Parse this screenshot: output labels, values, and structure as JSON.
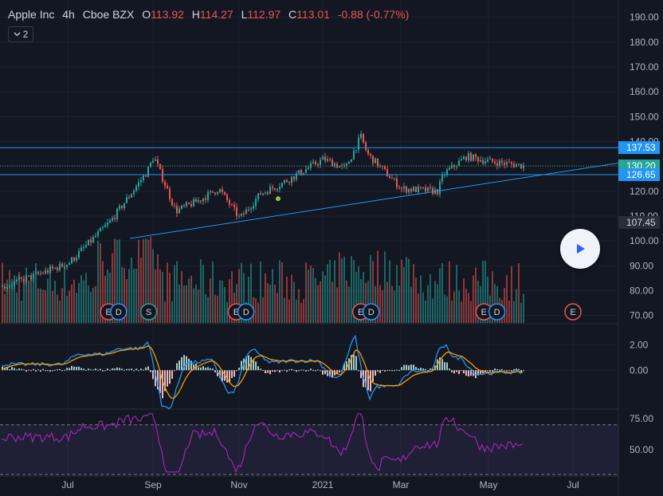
{
  "header": {
    "symbol": "Apple Inc",
    "interval": "4h",
    "exchange": "Cboe BZX",
    "open_label": "O",
    "open": "113.92",
    "high_label": "H",
    "high": "114.27",
    "low_label": "L",
    "low": "112.97",
    "close_label": "C",
    "close": "113.01",
    "change": "-0.88 (-0.77%)"
  },
  "indicators_toggle": {
    "icon": "chevron-down-icon",
    "count": "2"
  },
  "play_button": {
    "icon": "play-icon"
  },
  "colors": {
    "background": "#131722",
    "up": "#26a69a",
    "down": "#ef5350",
    "line_blue": "#2196f3",
    "line_orange": "#ff9800",
    "rsi": "#9c27b0",
    "grid": "#1e222d",
    "current_price_tag": "#26a69a",
    "hline_tag": "#2196f3"
  },
  "chart_data": [
    {
      "type": "candlestick",
      "panel": "price",
      "y_axis_ticks": [
        70,
        80,
        90,
        100,
        110,
        120,
        130,
        140,
        150,
        160,
        170,
        180,
        190
      ],
      "ylim": [
        67,
        195
      ],
      "x_ticks": [
        "Jul",
        "Sep",
        "Nov",
        "2021",
        "Mar",
        "May",
        "Jul"
      ],
      "price_labels": [
        {
          "value": "137.53",
          "kind": "horizontal-line"
        },
        {
          "value": "130.20",
          "kind": "current"
        },
        {
          "value": "126.65",
          "kind": "horizontal-line"
        },
        {
          "value": "107.45",
          "kind": "marker"
        }
      ],
      "horizontal_lines": [
        137.53,
        126.65
      ],
      "trendline": {
        "from": {
          "x": "Aug 15",
          "y": 101
        },
        "to": {
          "x": "Jul 2021",
          "y": 128.5
        }
      },
      "series_close_approx": [
        {
          "x": "Jun",
          "y": 80
        },
        {
          "x": "Jul",
          "y": 91
        },
        {
          "x": "Aug",
          "y": 108
        },
        {
          "x": "Aug end",
          "y": 128
        },
        {
          "x": "Sep 1",
          "y": 134
        },
        {
          "x": "Sep mid",
          "y": 112
        },
        {
          "x": "Oct",
          "y": 116
        },
        {
          "x": "Oct mid",
          "y": 121
        },
        {
          "x": "Nov",
          "y": 109
        },
        {
          "x": "Nov mid",
          "y": 119
        },
        {
          "x": "Dec",
          "y": 123
        },
        {
          "x": "2021",
          "y": 133
        },
        {
          "x": "Jan mid",
          "y": 129
        },
        {
          "x": "Jan end",
          "y": 142
        },
        {
          "x": "Feb",
          "y": 135
        },
        {
          "x": "Mar",
          "y": 121
        },
        {
          "x": "Mar end",
          "y": 120
        },
        {
          "x": "Apr",
          "y": 127
        },
        {
          "x": "Apr mid",
          "y": 134
        },
        {
          "x": "May",
          "y": 132
        },
        {
          "x": "May end",
          "y": 130.2
        }
      ],
      "event_markers": [
        {
          "label": "E",
          "x": "Jul 30"
        },
        {
          "label": "D",
          "x": "Aug 7"
        },
        {
          "label": "S",
          "x": "Aug 28"
        },
        {
          "label": "E",
          "x": "Oct 29"
        },
        {
          "label": "D",
          "x": "Nov 6"
        },
        {
          "label": "E",
          "x": "Jan 27"
        },
        {
          "label": "D",
          "x": "Feb 5"
        },
        {
          "label": "E",
          "x": "Apr 28"
        },
        {
          "label": "D",
          "x": "May 7"
        },
        {
          "label": "E",
          "x": "Jul 2021"
        }
      ]
    },
    {
      "type": "line",
      "panel": "macd",
      "y_axis_ticks": [
        "2.00",
        "0.00"
      ],
      "ylim": [
        -3.0,
        3.6
      ],
      "series": [
        {
          "color_key": "line_blue"
        },
        {
          "color_key": "line_orange"
        }
      ],
      "histogram": true
    },
    {
      "type": "line",
      "panel": "rsi",
      "y_axis_ticks": [
        "75.00",
        "50.00"
      ],
      "ylim": [
        30,
        82
      ],
      "bands": [
        70,
        30
      ]
    }
  ]
}
